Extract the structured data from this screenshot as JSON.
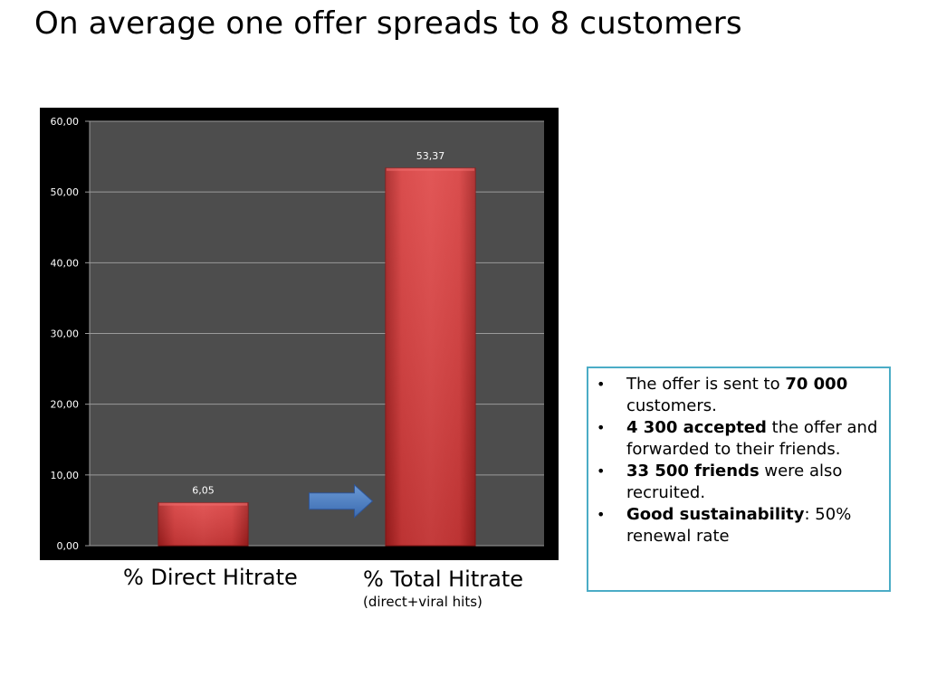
{
  "slide": {
    "title": "On average one offer spreads to 8 customers"
  },
  "chart_data": {
    "type": "bar",
    "categories": [
      "% Direct Hitrate",
      "% Total Hitrate"
    ],
    "category_subtitles": [
      "",
      "(direct+viral hits)"
    ],
    "values": [
      6.05,
      53.37
    ],
    "value_labels": [
      "6,05",
      "53,37"
    ],
    "ylim": [
      0,
      60
    ],
    "y_ticks": [
      0,
      10,
      20,
      30,
      40,
      50,
      60
    ],
    "y_tick_labels": [
      "0,00",
      "10,00",
      "20,00",
      "30,00",
      "40,00",
      "50,00",
      "60,00"
    ],
    "grid": true,
    "legend": "none",
    "colors": {
      "bar": "#d63a3a",
      "background": "#4d4d4d",
      "frame": "#000000",
      "arrow": "#4f81bd"
    }
  },
  "info_box": {
    "bullets": [
      {
        "bullet": "•",
        "pre": "The offer is sent to ",
        "bold": "70 000",
        "post": " customers."
      },
      {
        "bullet": "•",
        "pre": "",
        "bold": "4 300 accepted",
        "post": " the offer and forwarded to their friends."
      },
      {
        "bullet": "•",
        "pre": "",
        "bold": "33 500 friends",
        "post": " were also recruited."
      },
      {
        "bullet": "•",
        "pre": "",
        "bold": "Good sustainability",
        "post": ": 50% renewal rate"
      }
    ]
  }
}
